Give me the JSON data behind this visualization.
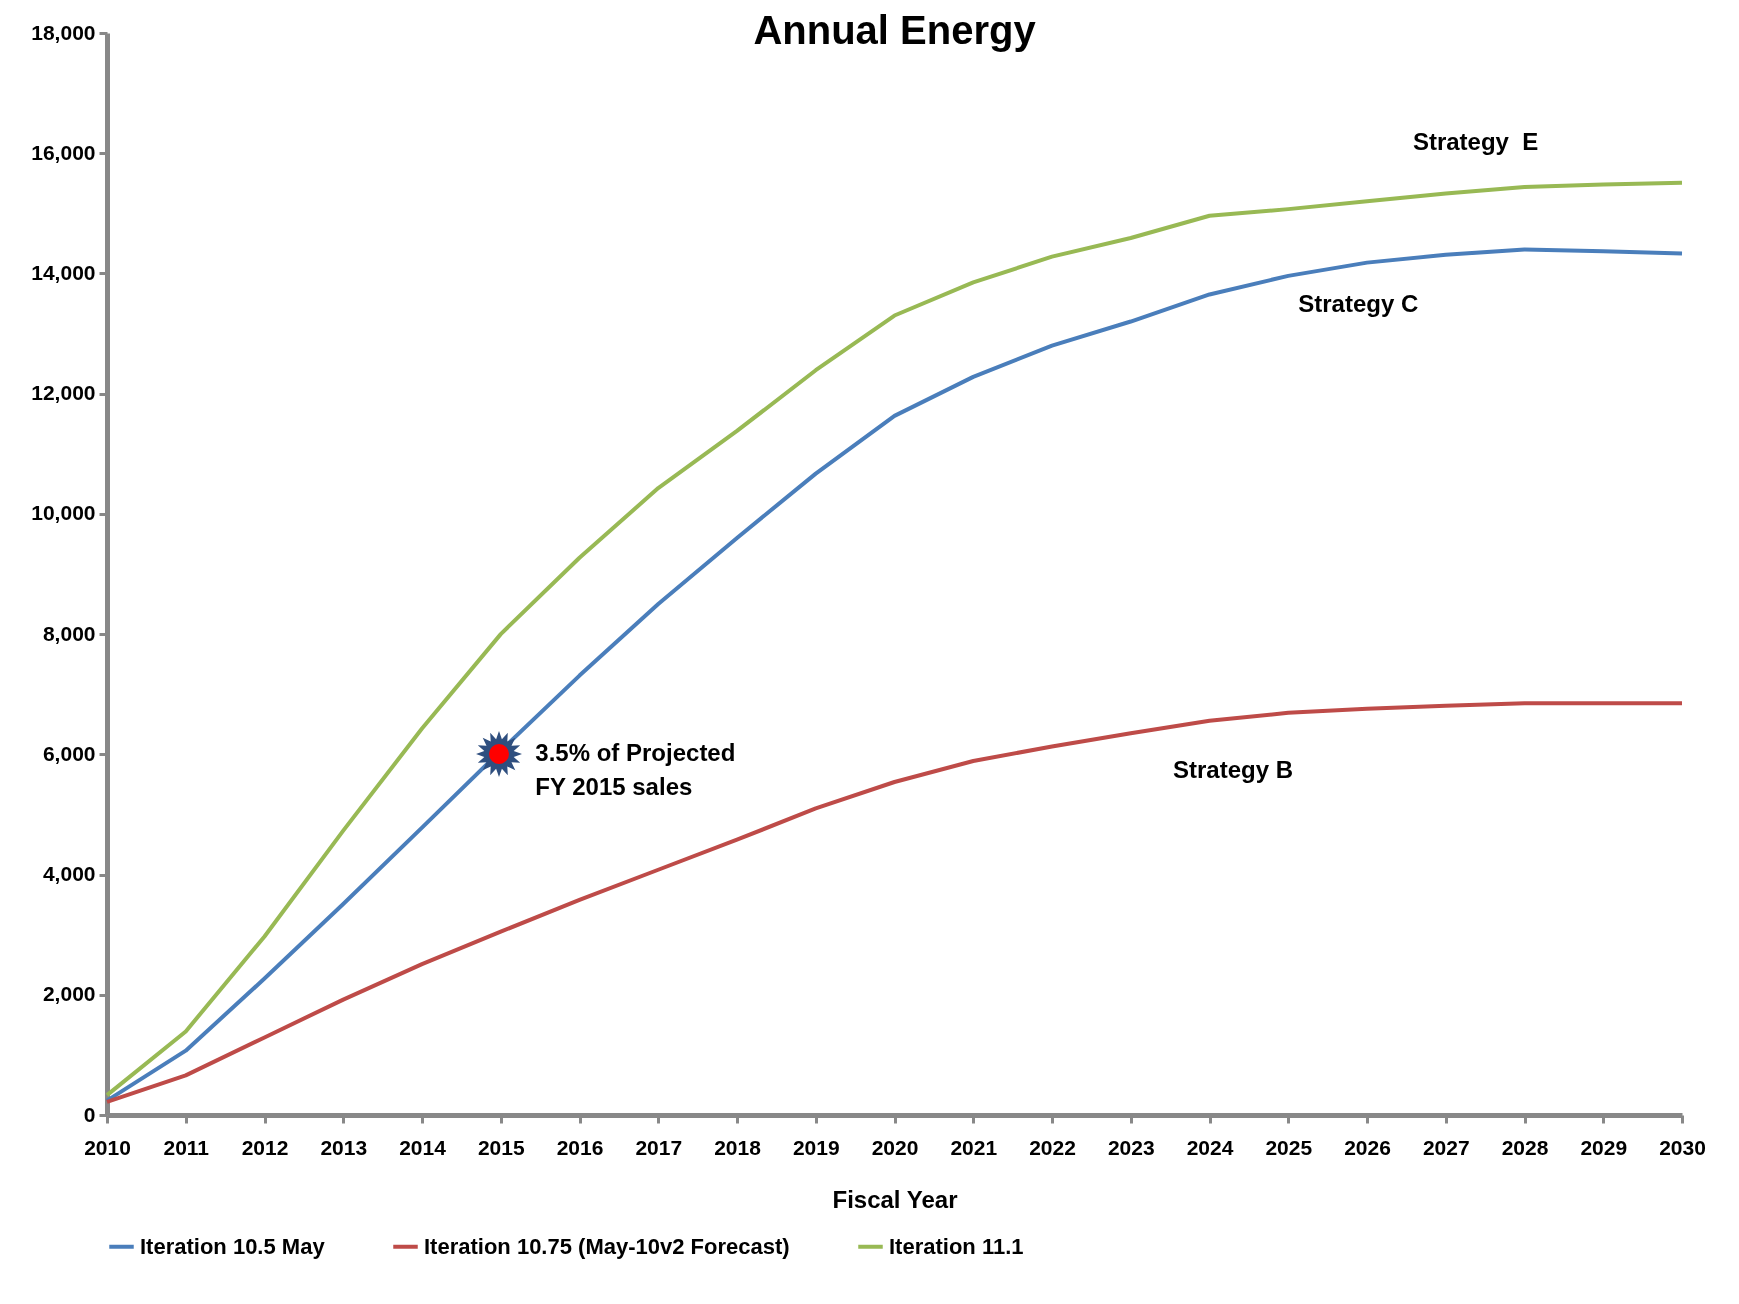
{
  "chart_data": {
    "type": "line",
    "title": "Annual Energy",
    "xlabel": "Fiscal Year",
    "x": [
      2010,
      2011,
      2012,
      2013,
      2014,
      2015,
      2016,
      2017,
      2018,
      2019,
      2020,
      2021,
      2022,
      2023,
      2024,
      2025,
      2026,
      2027,
      2028,
      2029,
      2030
    ],
    "series": [
      {
        "name": "Iteration 10.5 May",
        "color": "#4a7ebb",
        "values": [
          240,
          1070,
          2270,
          3510,
          4780,
          6060,
          7310,
          8500,
          9600,
          10670,
          11630,
          12280,
          12800,
          13200,
          13650,
          13960,
          14180,
          14310,
          14400,
          14370,
          14330
        ]
      },
      {
        "name": "Iteration 10.75 (May-10v2 Forecast)",
        "color": "#be4b48",
        "values": [
          220,
          660,
          1290,
          1920,
          2510,
          3050,
          3580,
          4080,
          4580,
          5100,
          5540,
          5890,
          6130,
          6350,
          6560,
          6690,
          6760,
          6810,
          6850,
          6850,
          6850
        ]
      },
      {
        "name": "Iteration 11.1",
        "color": "#98b954",
        "values": [
          330,
          1390,
          2970,
          4730,
          6430,
          8000,
          9270,
          10430,
          11380,
          12390,
          13300,
          13850,
          14280,
          14590,
          14960,
          15070,
          15200,
          15330,
          15440,
          15480,
          15510
        ]
      }
    ],
    "xlim": [
      2010,
      2030
    ],
    "xticks": [
      2010,
      2011,
      2012,
      2013,
      2014,
      2015,
      2016,
      2017,
      2018,
      2019,
      2020,
      2021,
      2022,
      2023,
      2024,
      2025,
      2026,
      2027,
      2028,
      2029,
      2030
    ],
    "ylim": [
      0,
      18000
    ],
    "yticks": [
      {
        "value": 0,
        "label": "0"
      },
      {
        "value": 2000,
        "label": "2,000"
      },
      {
        "value": 4000,
        "label": "4,000"
      },
      {
        "value": 6000,
        "label": "6,000"
      },
      {
        "value": 8000,
        "label": "8,000"
      },
      {
        "value": 10000,
        "label": "10,000"
      },
      {
        "value": 12000,
        "label": "12,000"
      },
      {
        "value": 14000,
        "label": "14,000"
      },
      {
        "value": 16000,
        "label": "16,000"
      },
      {
        "value": 18000,
        "label": "18,000"
      }
    ],
    "annotations": [
      "Strategy  E",
      "Strategy C",
      "Strategy B",
      "3.5% of Projected\nFY 2015 sales"
    ],
    "grid": false,
    "legend": "bottom",
    "marker": "none",
    "line_style": "solid"
  }
}
